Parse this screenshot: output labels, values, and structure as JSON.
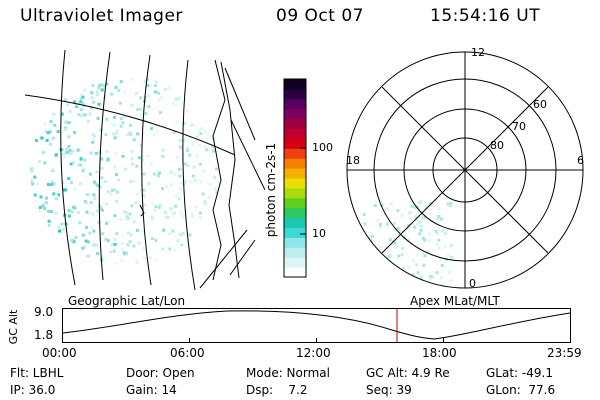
{
  "header": {
    "instrument": "Ultraviolet Imager",
    "date": "09 Oct 07",
    "time": "15:54:16 UT"
  },
  "colorbar": {
    "label": "photon cm-2s-1",
    "ticks": [
      "100",
      "10"
    ],
    "colors": [
      "#ffffff",
      "#dff4f4",
      "#bfeeee",
      "#8fe6e6",
      "#3fd6d6",
      "#1bc7b5",
      "#30c860",
      "#60d020",
      "#a8dc10",
      "#e8e000",
      "#f7b000",
      "#f48000",
      "#ee4010",
      "#d80010",
      "#c00030",
      "#a00040",
      "#800060",
      "#5a0060",
      "#2c0040",
      "#100020"
    ]
  },
  "polar": {
    "lat_labels": [
      "60",
      "70",
      "80"
    ],
    "mlt_labels": {
      "top": "12",
      "bottom": "0",
      "left": "18",
      "right": "6"
    }
  },
  "panels": {
    "left_caption": "Geographic Lat/Lon",
    "right_caption": "Apex MLat/MLT"
  },
  "altitude_plot": {
    "ylabel": "GC Alt",
    "y_ticks": [
      "9.0",
      "1.8"
    ],
    "x_ticks": [
      "00:00",
      "06:00",
      "12:00",
      "18:00",
      "23:59"
    ]
  },
  "status": {
    "flt": "Flt: LBHL",
    "ip": "IP: 36.0",
    "door": "Door: Open",
    "gain": "Gain: 14",
    "mode": "Mode: Normal",
    "dsp": "Dsp:    7.2",
    "gc_alt": "GC Alt: 4.9 Re",
    "seq": "Seq: 39",
    "glat": "GLat: -49.1",
    "glon": "GLon:  77.6"
  }
}
